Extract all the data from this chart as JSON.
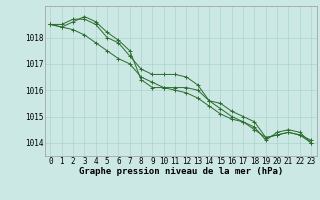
{
  "background_color": "#cce8e4",
  "grid_color": "#aad4ce",
  "line_color": "#2d6b2d",
  "marker_color": "#2d6b2d",
  "title": "Graphe pression niveau de la mer (hPa)",
  "ylim": [
    1013.5,
    1019.2
  ],
  "yticks": [
    1014,
    1015,
    1016,
    1017,
    1018
  ],
  "xlim": [
    -0.5,
    23.5
  ],
  "xticks": [
    0,
    1,
    2,
    3,
    4,
    5,
    6,
    7,
    8,
    9,
    10,
    11,
    12,
    13,
    14,
    15,
    16,
    17,
    18,
    19,
    20,
    21,
    22,
    23
  ],
  "series1": [
    1018.5,
    1018.5,
    1018.7,
    1018.7,
    1018.5,
    1018.0,
    1017.8,
    1017.3,
    1016.8,
    1016.6,
    1016.6,
    1016.6,
    1016.5,
    1016.2,
    1015.6,
    1015.5,
    1015.2,
    1015.0,
    1014.8,
    1014.2,
    1014.3,
    1014.4,
    1014.3,
    1014.1
  ],
  "series2": [
    1018.5,
    1018.4,
    1018.6,
    1018.8,
    1018.6,
    1018.2,
    1017.9,
    1017.5,
    1016.4,
    1016.1,
    1016.1,
    1016.1,
    1016.1,
    1016.0,
    1015.6,
    1015.3,
    1015.0,
    1014.8,
    1014.6,
    1014.1,
    1014.4,
    1014.5,
    1014.4,
    1014.0
  ],
  "series3": [
    1018.5,
    1018.4,
    1018.3,
    1018.1,
    1017.8,
    1017.5,
    1017.2,
    1017.0,
    1016.5,
    1016.3,
    1016.1,
    1016.0,
    1015.9,
    1015.7,
    1015.4,
    1015.1,
    1014.9,
    1014.8,
    1014.5,
    1014.2,
    1014.3,
    1014.4,
    1014.3,
    1014.0
  ],
  "tick_fontsize": 5.5,
  "label_fontsize": 6.5
}
